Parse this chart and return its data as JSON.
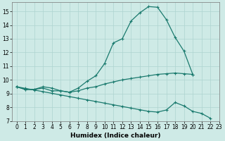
{
  "x_all": [
    0,
    1,
    2,
    3,
    4,
    5,
    6,
    7,
    8,
    9,
    10,
    11,
    12,
    13,
    14,
    15,
    16,
    17,
    18,
    19,
    20,
    21,
    22,
    23
  ],
  "curve_top": [
    9.5,
    9.3,
    9.3,
    9.5,
    9.4,
    9.2,
    9.1,
    9.4,
    9.9,
    10.3,
    11.2,
    12.7,
    13.0,
    14.3,
    14.9,
    15.35,
    15.3,
    14.4,
    13.1,
    12.1,
    10.4,
    null,
    null,
    null
  ],
  "curve_mid": [
    9.5,
    9.3,
    9.3,
    9.4,
    9.2,
    9.2,
    9.1,
    9.2,
    9.4,
    9.5,
    9.7,
    9.85,
    10.0,
    10.1,
    10.2,
    10.3,
    10.4,
    10.45,
    10.5,
    10.45,
    10.4,
    null,
    null,
    null
  ],
  "curve_bot": [
    9.5,
    9.38,
    9.26,
    9.14,
    9.02,
    8.9,
    8.78,
    8.66,
    8.54,
    8.42,
    8.3,
    8.18,
    8.06,
    7.94,
    7.82,
    7.7,
    7.65,
    7.8,
    8.35,
    8.1,
    7.7,
    7.55,
    7.2,
    null
  ],
  "xlabel": "Humidex (Indice chaleur)",
  "xlim": [
    -0.5,
    23
  ],
  "ylim": [
    7,
    15.65
  ],
  "yticks": [
    7,
    8,
    9,
    10,
    11,
    12,
    13,
    14,
    15
  ],
  "xticks": [
    0,
    1,
    2,
    3,
    4,
    5,
    6,
    7,
    8,
    9,
    10,
    11,
    12,
    13,
    14,
    15,
    16,
    17,
    18,
    19,
    20,
    21,
    22,
    23
  ],
  "bg_color": "#ceeae6",
  "grid_color": "#aed4d0",
  "line_color": "#1a7a6e",
  "marker_size": 3.5,
  "linewidth": 0.9
}
